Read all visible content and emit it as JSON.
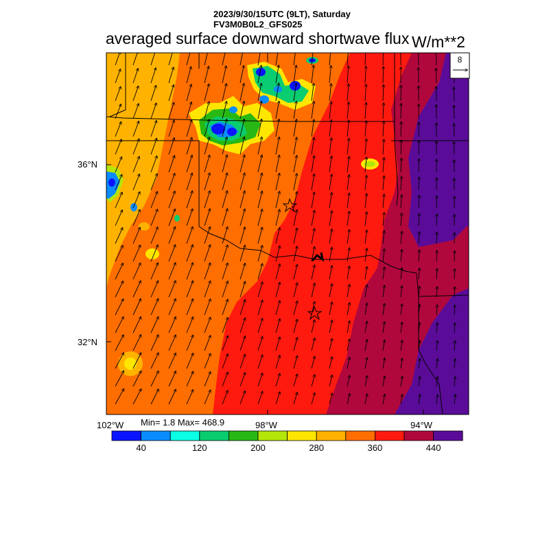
{
  "header": {
    "date_line": "2023/9/30/15UTC (9LT), Saturday",
    "model_line": "FV3M0B0L2_GFS025",
    "title": "averaged surface downward shortwave flux",
    "units": "W/m**2"
  },
  "map": {
    "lat_labels": [
      "36°N",
      "32°N"
    ],
    "lon_labels": [
      "102°W",
      "98°W",
      "94°W"
    ],
    "vector_reference": "8",
    "colors": {
      "yellow_orange": "#FFB300",
      "orange": "#FF6E00",
      "red": "#FF1A0F",
      "crimson": "#B0083D",
      "purple": "#5A0C98"
    }
  },
  "stats": "Min= 1.8 Max= 468.9",
  "colorbar": {
    "colors": [
      "#0A14FF",
      "#0A8CFF",
      "#0AFFE6",
      "#0ACC70",
      "#28B814",
      "#B4E60A",
      "#FFE600",
      "#FFB300",
      "#FF6E00",
      "#FF1A0F",
      "#B0083D",
      "#5A0C98"
    ],
    "labels": [
      "40",
      "120",
      "200",
      "280",
      "360",
      "440"
    ]
  }
}
